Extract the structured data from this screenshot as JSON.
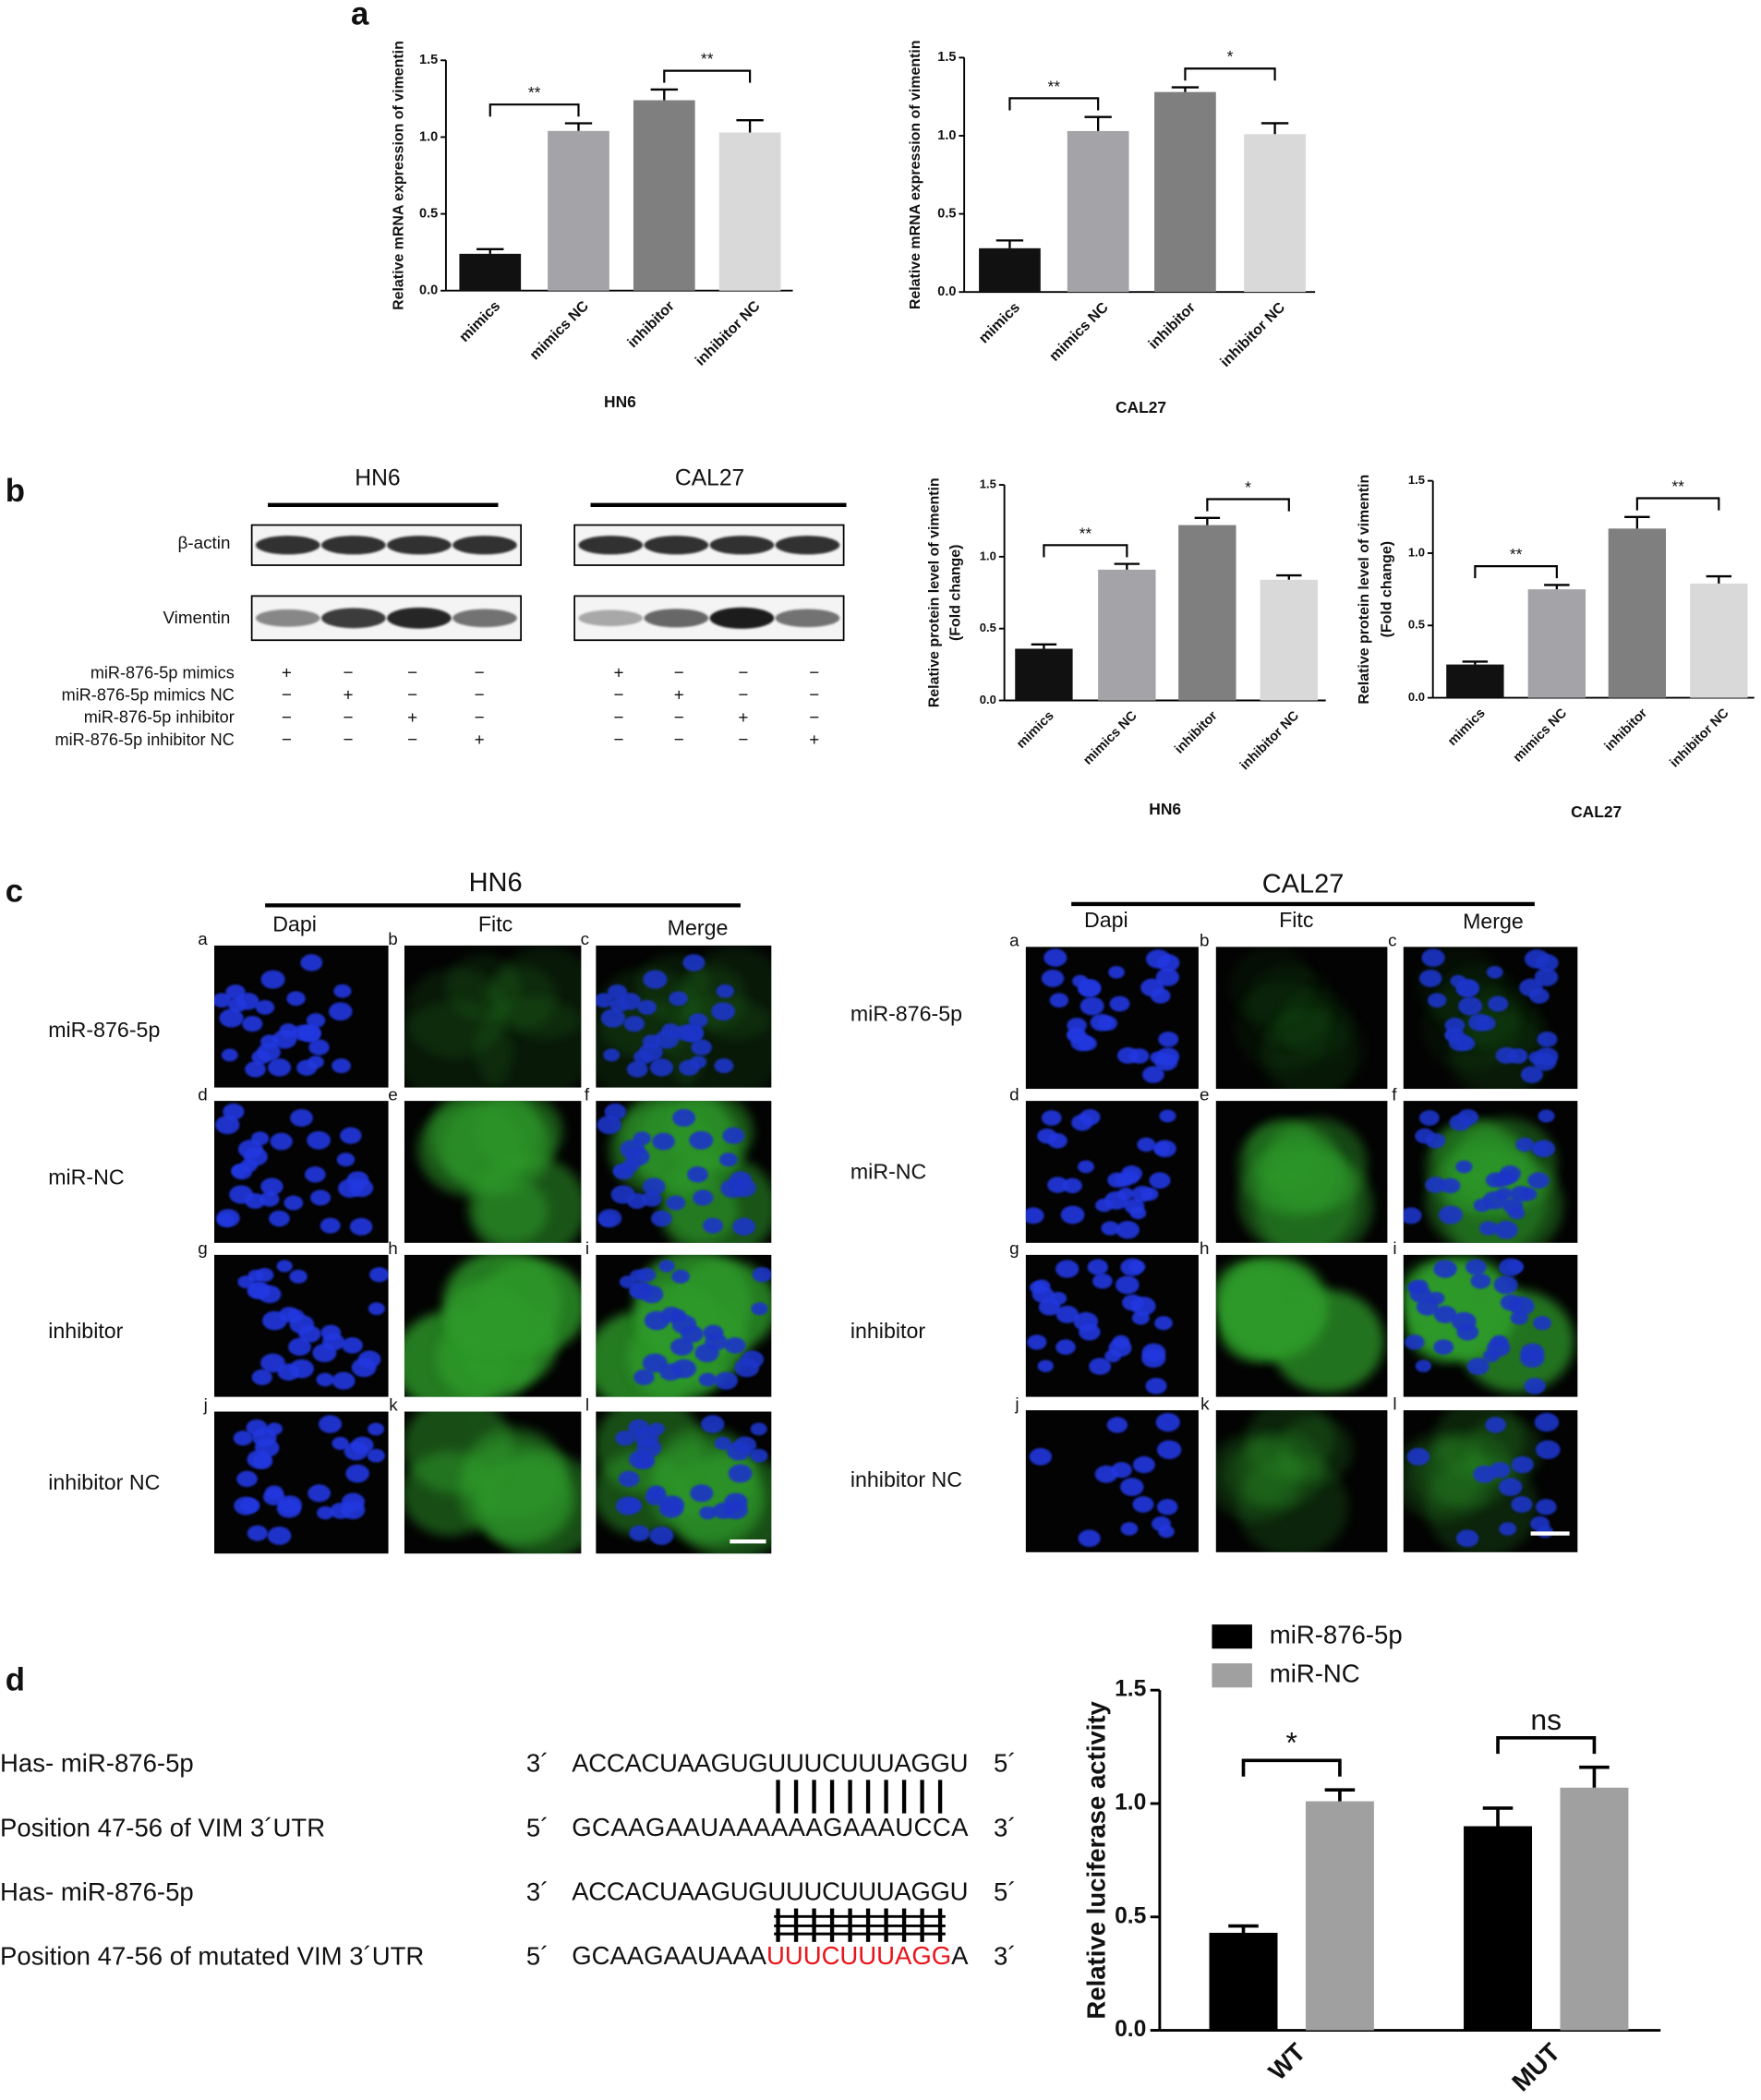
{
  "panel_labels": [
    "a",
    "b",
    "c",
    "d"
  ],
  "chart_data": [
    {
      "type": "bar",
      "y_label": "Relative mRNA expression of vimentin",
      "x_label": "HN6",
      "categories": [
        "mimics",
        "mimics NC",
        "inhibitor",
        "inhibitor NC"
      ],
      "values": [
        0.24,
        1.04,
        1.24,
        1.03
      ],
      "errors": [
        0.03,
        0.05,
        0.07,
        0.08
      ],
      "colors": [
        "#111111",
        "#a3a3a8",
        "#7f7f7f",
        "#d9d9d9"
      ],
      "ylim": [
        0,
        1.5
      ],
      "yticks": [
        {
          "value": 0,
          "label": "0.0"
        },
        0.5,
        {
          "value": 1,
          "label": "1.0"
        },
        1.5
      ],
      "significance": [
        {
          "bars": [
            0,
            1
          ],
          "label": "**"
        },
        {
          "bars": [
            2,
            3
          ],
          "label": "**"
        }
      ]
    },
    {
      "type": "bar",
      "y_label": "Relative mRNA expression of vimentin",
      "x_label": "CAL27",
      "categories": [
        "mimics",
        "mimics NC",
        "inhibitor",
        "inhibitor NC"
      ],
      "values": [
        0.28,
        1.03,
        1.28,
        1.01
      ],
      "errors": [
        0.05,
        0.09,
        0.03,
        0.07
      ],
      "colors": [
        "#111111",
        "#a3a3a8",
        "#7f7f7f",
        "#d9d9d9"
      ],
      "ylim": [
        0,
        1.5
      ],
      "yticks": [
        {
          "value": 0,
          "label": "0.0"
        },
        0.5,
        {
          "value": 1,
          "label": "1.0"
        },
        1.5
      ],
      "significance": [
        {
          "bars": [
            0,
            1
          ],
          "label": "**"
        },
        {
          "bars": [
            2,
            3
          ],
          "label": "*"
        }
      ]
    },
    {
      "type": "bar",
      "y_label": [
        "Relative protein level of vimentin",
        "(Fold change)"
      ],
      "x_label": "HN6",
      "categories": [
        "mimics",
        "mimics NC",
        "inhibitor",
        "inhibitor NC"
      ],
      "values": [
        0.36,
        0.91,
        1.22,
        0.84
      ],
      "errors": [
        0.03,
        0.04,
        0.05,
        0.03
      ],
      "colors": [
        "#111111",
        "#a3a3a8",
        "#7f7f7f",
        "#d9d9d9"
      ],
      "ylim": [
        0,
        1.5
      ],
      "yticks": [
        {
          "value": 0,
          "label": "0.0"
        },
        0.5,
        {
          "value": 1,
          "label": "1.0"
        },
        1.5
      ],
      "significance": [
        {
          "bars": [
            0,
            1
          ],
          "label": "**"
        },
        {
          "bars": [
            2,
            3
          ],
          "label": "*"
        }
      ]
    },
    {
      "type": "bar",
      "y_label": [
        "Relative protein level of vimentin",
        "(Fold change)"
      ],
      "x_label": "CAL27",
      "categories": [
        "mimics",
        "mimics NC",
        "inhibitor",
        "inhibitor NC"
      ],
      "values": [
        0.23,
        0.75,
        1.17,
        0.79
      ],
      "errors": [
        0.02,
        0.03,
        0.08,
        0.05
      ],
      "colors": [
        "#111111",
        "#a3a3a8",
        "#7f7f7f",
        "#d9d9d9"
      ],
      "ylim": [
        0,
        1.5
      ],
      "yticks": [
        {
          "value": 0,
          "label": "0.0"
        },
        0.5,
        {
          "value": 1,
          "label": "1.0"
        },
        1.5
      ],
      "significance": [
        {
          "bars": [
            0,
            1
          ],
          "label": "**"
        },
        {
          "bars": [
            2,
            3
          ],
          "label": "**"
        }
      ]
    },
    {
      "type": "bar",
      "y_label": "Relative luciferase activity",
      "categories": [
        "WT",
        "MUT"
      ],
      "series": [
        {
          "name": "miR-876-5p",
          "color": "#000000",
          "values": [
            0.43,
            0.9
          ],
          "errors": [
            0.03,
            0.08
          ]
        },
        {
          "name": "miR-NC",
          "color": "#a0a0a0",
          "values": [
            1.01,
            1.07
          ],
          "errors": [
            0.05,
            0.09
          ]
        }
      ],
      "ylim": [
        0,
        1.5
      ],
      "yticks": [
        {
          "value": 0,
          "label": "0.0"
        },
        0.5,
        {
          "value": 1,
          "label": "1.0"
        },
        1.5
      ],
      "significance": [
        {
          "bars": [
            0,
            1
          ],
          "label": "*"
        },
        {
          "bars": [
            2,
            3
          ],
          "label": "ns"
        }
      ]
    }
  ],
  "western_blot": {
    "groups": [
      "HN6",
      "CAL27"
    ],
    "bands": [
      "β-actin",
      "Vimentin"
    ],
    "conditions": [
      {
        "name": "miR-876-5p mimics",
        "signs": [
          "+",
          "−",
          "−",
          "−"
        ]
      },
      {
        "name": "miR-876-5p mimics NC",
        "signs": [
          "−",
          "+",
          "−",
          "−"
        ]
      },
      {
        "name": "miR-876-5p inhibitor",
        "signs": [
          "−",
          "−",
          "+",
          "−"
        ]
      },
      {
        "name": "miR-876-5p inhibitor NC",
        "signs": [
          "−",
          "−",
          "−",
          "+"
        ]
      }
    ]
  },
  "immunofluorescence": {
    "groups": [
      "HN6",
      "CAL27"
    ],
    "columns": [
      "Dapi",
      "Fitc",
      "Merge"
    ],
    "rows": [
      "miR-876-5p",
      "miR-NC",
      "inhibitor",
      "inhibitor NC"
    ],
    "panel_letters": [
      "a",
      "b",
      "c",
      "d",
      "e",
      "f",
      "g",
      "h",
      "i",
      "j",
      "k",
      "l"
    ]
  },
  "sequence_alignment": {
    "rows": [
      {
        "label": "Has- miR-876-5p",
        "start": "3´",
        "sequence": [
          {
            "text": "ACCACUAAGUGUUUCUUUAGGU"
          }
        ],
        "end": "5´"
      },
      {
        "label": "Position 47-56 of VIM 3´UTR",
        "start": "5´",
        "sequence": [
          {
            "text": "GCAAGAAUAAAAAAGAAAUCCA"
          }
        ],
        "end": "3´"
      },
      {
        "label": "Has- miR-876-5p",
        "start": "3´",
        "sequence": [
          {
            "text": "ACCACUAAGUGUUUCUUUAGGU"
          }
        ],
        "end": "5´"
      },
      {
        "label": "Position 47-56 of mutated VIM 3´UTR",
        "start": "5´",
        "sequence": [
          {
            "text": "GCAAGAAUAAA"
          },
          {
            "text": "UUUCUUUAGG",
            "color": "#e8151b"
          },
          {
            "text": "A"
          }
        ],
        "end": "3´"
      }
    ]
  }
}
